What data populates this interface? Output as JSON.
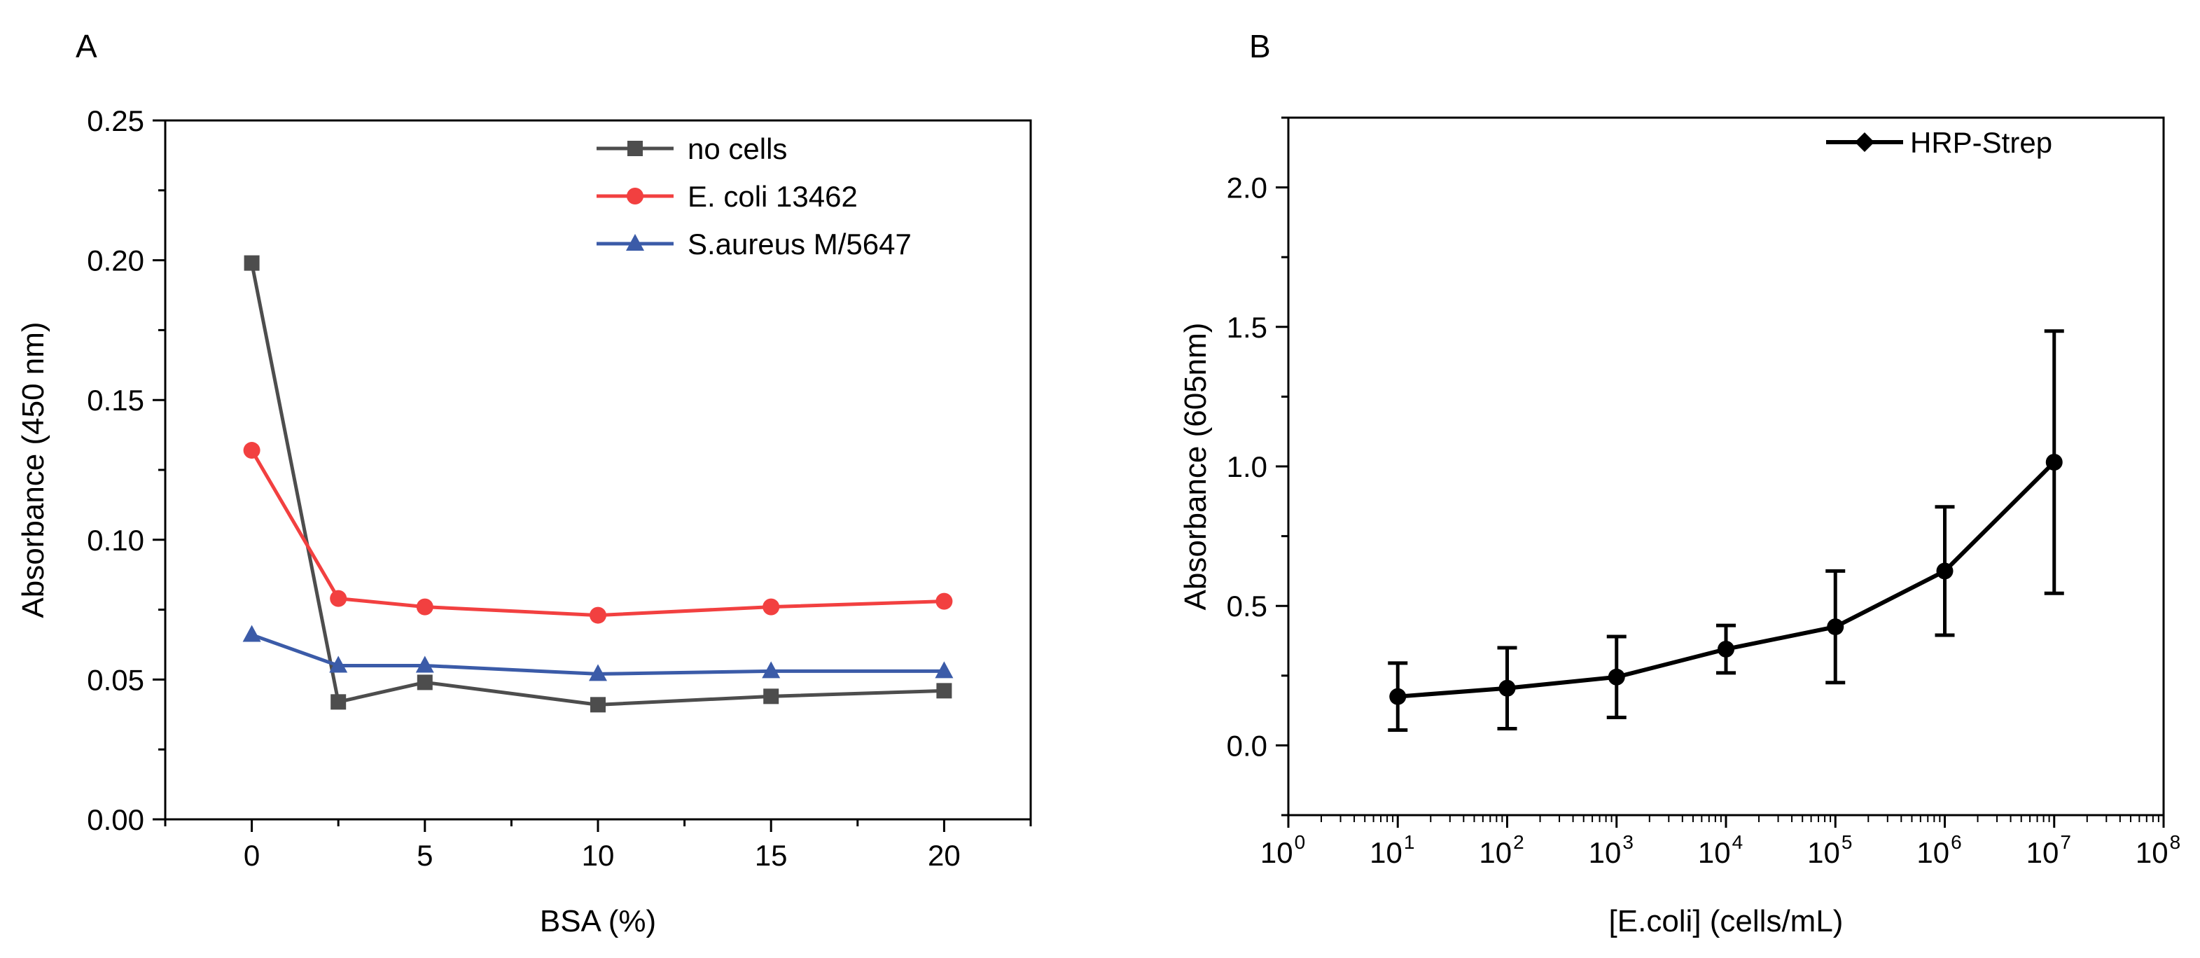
{
  "chart_data": [
    {
      "panel_label": "A",
      "type": "line",
      "xlabel": "BSA (%)",
      "ylabel": "Absorbance (450 nm)",
      "xlim": [
        -2.5,
        22.5
      ],
      "ylim": [
        0,
        0.25
      ],
      "xticks": [
        0,
        5,
        10,
        15,
        20
      ],
      "xtick_labels": [
        "0",
        "5",
        "10",
        "15",
        "20"
      ],
      "yticks": [
        0,
        0.05,
        0.1,
        0.15,
        0.2,
        0.25
      ],
      "ytick_labels": [
        "0.00",
        "0.05",
        "0.10",
        "0.15",
        "0.20",
        "0.25"
      ],
      "legend_position": "top-right",
      "grid": false,
      "series": [
        {
          "name": "no cells",
          "color": "#4d4d4d",
          "marker": "square",
          "x": [
            0,
            2.5,
            5,
            10,
            15,
            20
          ],
          "y": [
            0.199,
            0.042,
            0.049,
            0.041,
            0.044,
            0.046
          ]
        },
        {
          "name": "E. coli 13462",
          "color": "#f24040",
          "marker": "circle",
          "x": [
            0,
            2.5,
            5,
            10,
            15,
            20
          ],
          "y": [
            0.132,
            0.079,
            0.076,
            0.073,
            0.076,
            0.078
          ]
        },
        {
          "name": "S.aureus M/5647",
          "color": "#3b5ba8",
          "marker": "triangle",
          "x": [
            0,
            2.5,
            5,
            10,
            15,
            20
          ],
          "y": [
            0.066,
            0.055,
            0.055,
            0.052,
            0.053,
            0.053
          ]
        }
      ]
    },
    {
      "panel_label": "B",
      "type": "line",
      "xlabel": "[E.coli] (cells/mL)",
      "ylabel": "Absorbance (605nm)",
      "xscale": "log",
      "xlim": [
        1,
        100000000
      ],
      "ylim": [
        -0.25,
        2.25
      ],
      "xticks": [
        1,
        10,
        100,
        1000,
        10000,
        100000,
        1000000,
        10000000,
        100000000
      ],
      "xtick_base": "10",
      "xtick_exponents": [
        "0",
        "1",
        "2",
        "3",
        "4",
        "5",
        "6",
        "7",
        "8"
      ],
      "yticks": [
        0,
        0.5,
        1.0,
        1.5,
        2.0
      ],
      "ytick_labels": [
        "0.0",
        "0.5",
        "1.0",
        "1.5",
        "2.0"
      ],
      "legend_position": "top-right",
      "grid": false,
      "series": [
        {
          "name": "HRP-Strep",
          "color": "#000000",
          "marker": "circle",
          "x": [
            10,
            100,
            1000,
            10000,
            100000,
            1000000,
            10000000
          ],
          "y": [
            0.175,
            0.205,
            0.245,
            0.345,
            0.425,
            0.625,
            1.015
          ],
          "err": [
            0.12,
            0.145,
            0.145,
            0.085,
            0.2,
            0.23,
            0.47
          ]
        }
      ]
    }
  ]
}
